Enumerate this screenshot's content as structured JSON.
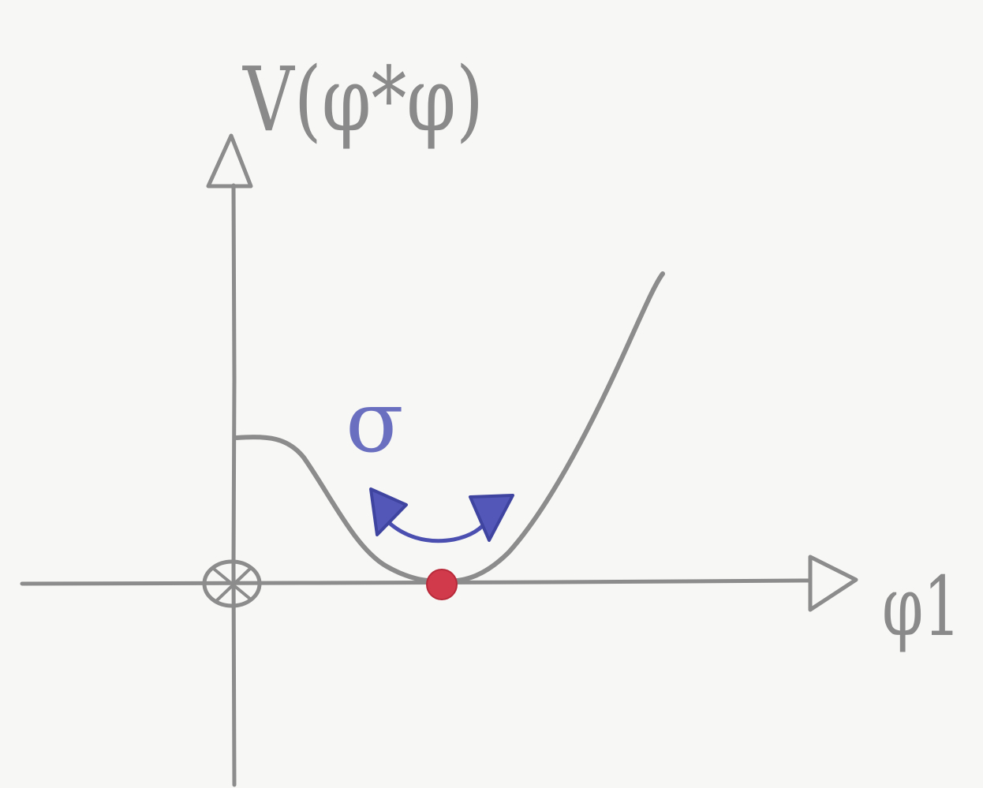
{
  "diagram": {
    "y_axis_label": "V(φ*φ)",
    "x_axis_label": "φ1",
    "mode_label": "σ",
    "colors": {
      "pencil": "#8c8c8c",
      "minimum_dot": "#d03a4a",
      "mode_arrow": "#4a4fb0",
      "paper": "#f7f7f5"
    }
  }
}
